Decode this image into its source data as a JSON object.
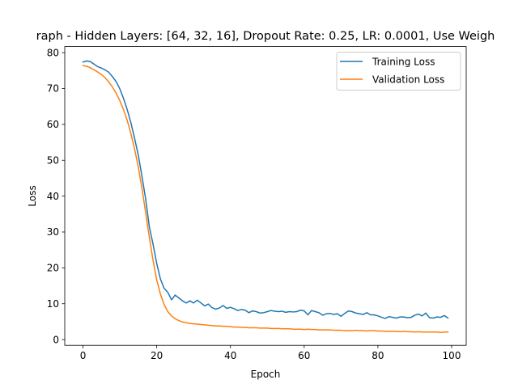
{
  "chart_data": {
    "type": "line",
    "title": "raph - Hidden Layers: [64, 32, 16], Dropout Rate: 0.25, LR: 0.0001, Use Weigh",
    "xlabel": "Epoch",
    "ylabel": "Loss",
    "xlim": [
      -4.95,
      103.95
    ],
    "ylim": [
      -1.6,
      81.7
    ],
    "xticks": [
      0,
      20,
      40,
      60,
      80,
      100
    ],
    "yticks": [
      0,
      10,
      20,
      30,
      40,
      50,
      60,
      70,
      80
    ],
    "grid": false,
    "legend_position": "top-right",
    "series": [
      {
        "name": "Training Loss",
        "color": "#1f77b4",
        "x": [
          0,
          1,
          2,
          3,
          4,
          5,
          6,
          7,
          8,
          9,
          10,
          11,
          12,
          13,
          14,
          15,
          16,
          17,
          18,
          19,
          20,
          21,
          22,
          23,
          24,
          25,
          26,
          27,
          28,
          29,
          30,
          31,
          32,
          33,
          34,
          35,
          36,
          37,
          38,
          39,
          40,
          41,
          42,
          43,
          44,
          45,
          46,
          47,
          48,
          49,
          50,
          51,
          52,
          53,
          54,
          55,
          56,
          57,
          58,
          59,
          60,
          61,
          62,
          63,
          64,
          65,
          66,
          67,
          68,
          69,
          70,
          71,
          72,
          73,
          74,
          75,
          76,
          77,
          78,
          79,
          80,
          81,
          82,
          83,
          84,
          85,
          86,
          87,
          88,
          89,
          90,
          91,
          92,
          93,
          94,
          95,
          96,
          97,
          98,
          99
        ],
        "values": [
          77.4,
          77.7,
          77.5,
          76.8,
          76.1,
          75.7,
          75.2,
          74.5,
          73.3,
          71.9,
          69.9,
          67.2,
          64.1,
          60.4,
          56.1,
          51.4,
          45.5,
          39.2,
          31.4,
          26.6,
          21.2,
          16.9,
          14.3,
          13.2,
          11.1,
          12.4,
          11.6,
          10.8,
          10.2,
          10.8,
          10.2,
          11.0,
          10.2,
          9.4,
          9.9,
          8.9,
          8.5,
          8.8,
          9.5,
          8.7,
          9.0,
          8.6,
          8.1,
          8.4,
          8.2,
          7.5,
          8.0,
          7.8,
          7.4,
          7.5,
          7.8,
          8.1,
          7.9,
          7.8,
          7.9,
          7.6,
          7.8,
          7.7,
          7.8,
          8.2,
          8.0,
          6.9,
          8.1,
          7.8,
          7.5,
          6.8,
          7.2,
          7.3,
          7.0,
          7.2,
          6.5,
          7.3,
          8.0,
          7.8,
          7.4,
          7.2,
          7.0,
          7.5,
          6.9,
          6.9,
          6.6,
          6.2,
          5.9,
          6.4,
          6.2,
          6.0,
          6.3,
          6.3,
          6.1,
          6.2,
          6.8,
          7.1,
          6.6,
          7.4,
          6.1,
          6.0,
          6.3,
          6.2,
          6.7,
          6.0
        ]
      },
      {
        "name": "Validation Loss",
        "color": "#ff7f0e",
        "x": [
          0,
          1,
          2,
          3,
          4,
          5,
          6,
          7,
          8,
          9,
          10,
          11,
          12,
          13,
          14,
          15,
          16,
          17,
          18,
          19,
          20,
          21,
          22,
          23,
          24,
          25,
          26,
          27,
          28,
          29,
          30,
          31,
          32,
          33,
          34,
          35,
          36,
          37,
          38,
          39,
          40,
          41,
          42,
          43,
          44,
          45,
          46,
          47,
          48,
          49,
          50,
          51,
          52,
          53,
          54,
          55,
          56,
          57,
          58,
          59,
          60,
          61,
          62,
          63,
          64,
          65,
          66,
          67,
          68,
          69,
          70,
          71,
          72,
          73,
          74,
          75,
          76,
          77,
          78,
          79,
          80,
          81,
          82,
          83,
          84,
          85,
          86,
          87,
          88,
          89,
          90,
          91,
          92,
          93,
          94,
          95,
          96,
          97,
          98,
          99
        ],
        "values": [
          76.4,
          76.2,
          75.8,
          75.2,
          74.6,
          73.9,
          73.0,
          71.8,
          70.4,
          68.7,
          66.6,
          64.1,
          61.1,
          57.4,
          53.1,
          48.1,
          42.1,
          35.4,
          28.5,
          22.1,
          16.6,
          12.7,
          9.8,
          7.8,
          6.6,
          5.8,
          5.3,
          4.9,
          4.7,
          4.5,
          4.4,
          4.3,
          4.2,
          4.1,
          4.0,
          3.9,
          3.8,
          3.8,
          3.7,
          3.7,
          3.6,
          3.5,
          3.5,
          3.4,
          3.4,
          3.3,
          3.3,
          3.3,
          3.2,
          3.2,
          3.2,
          3.1,
          3.1,
          3.1,
          3.0,
          3.0,
          3.0,
          2.9,
          2.9,
          2.9,
          2.8,
          2.9,
          2.8,
          2.8,
          2.7,
          2.7,
          2.7,
          2.7,
          2.6,
          2.6,
          2.6,
          2.5,
          2.5,
          2.5,
          2.6,
          2.5,
          2.5,
          2.4,
          2.5,
          2.5,
          2.4,
          2.4,
          2.3,
          2.3,
          2.3,
          2.3,
          2.2,
          2.3,
          2.2,
          2.2,
          2.1,
          2.2,
          2.1,
          2.1,
          2.1,
          2.1,
          2.1,
          2.0,
          2.1,
          2.1
        ]
      }
    ]
  }
}
